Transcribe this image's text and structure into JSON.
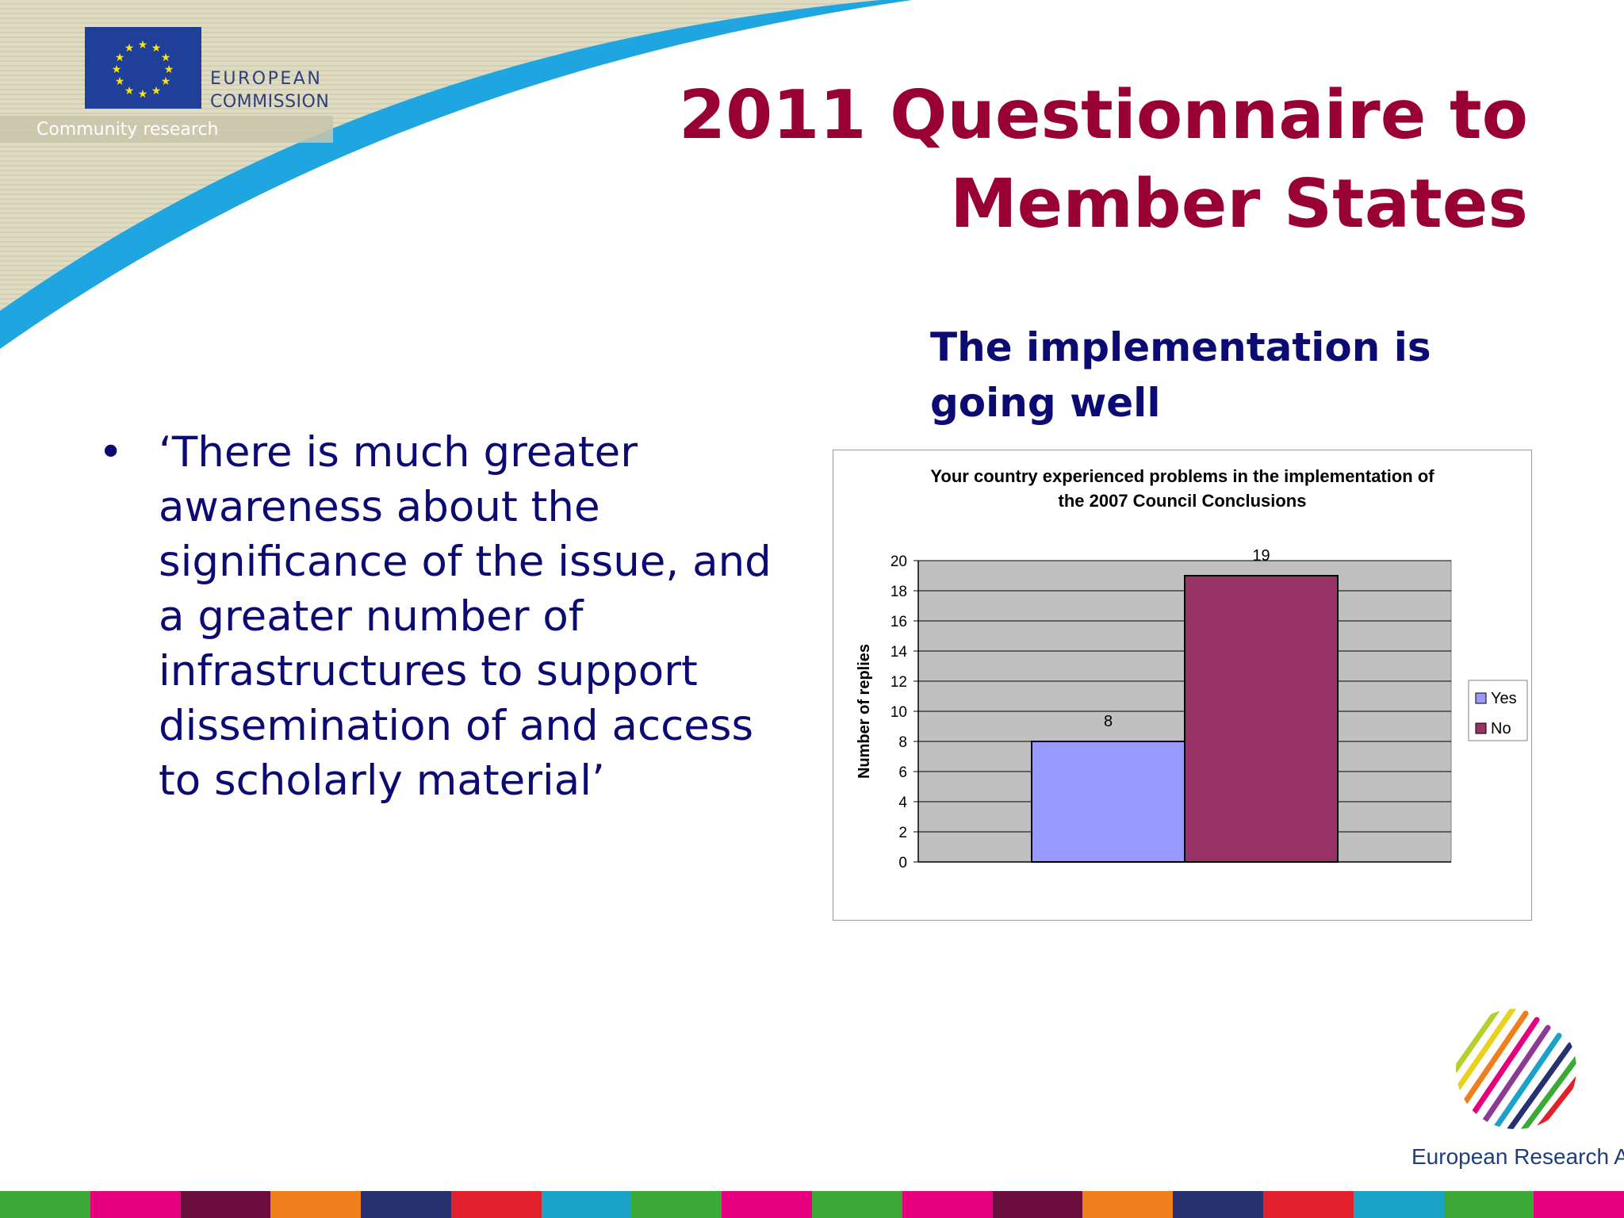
{
  "header": {
    "org_line1": "EUROPEAN",
    "org_line2": "COMMISSION",
    "org_sub": "Community research",
    "title_line1": "2011 Questionnaire to",
    "title_line2": "Member States"
  },
  "subtitle": "The implementation is going well",
  "bullets": [
    "‘There is much greater awareness about the significance of the issue, and a greater number of infrastructures to support dissemination of and access to scholarly material’"
  ],
  "footer": {
    "era_label": "European Research Area",
    "strip_colors": [
      "#3aa935",
      "#e6007e",
      "#6b0d3e",
      "#f07f1b",
      "#28316f",
      "#e3212d",
      "#1aa2c8",
      "#3aa935",
      "#e6007e",
      "#3aa935",
      "#e6007e",
      "#6b0d3e",
      "#f07f1b",
      "#28316f",
      "#e3212d",
      "#1aa2c8",
      "#3aa935",
      "#e6007e"
    ]
  },
  "colors": {
    "title": "#990033",
    "text": "#0b0b73",
    "chart_plot_bg": "#c0c0c0",
    "yes": "#9999ff",
    "no": "#993366"
  },
  "chart_data": {
    "type": "bar",
    "title": "Your country experienced problems in the implementation of the 2007 Council Conclusions",
    "title_lines": [
      "Your country experienced problems in the implementation of",
      "the 2007 Council Conclusions"
    ],
    "ylabel": "Number of replies",
    "xlabel": "",
    "ylim": [
      0,
      20
    ],
    "yticks": [
      0,
      2,
      4,
      6,
      8,
      10,
      12,
      14,
      16,
      18,
      20
    ],
    "grid": true,
    "legend_position": "right",
    "categories": [
      ""
    ],
    "series": [
      {
        "name": "Yes",
        "values": [
          8
        ],
        "color": "#9999ff"
      },
      {
        "name": "No",
        "values": [
          19
        ],
        "color": "#993366"
      }
    ],
    "data_labels": [
      "8",
      "19"
    ]
  }
}
